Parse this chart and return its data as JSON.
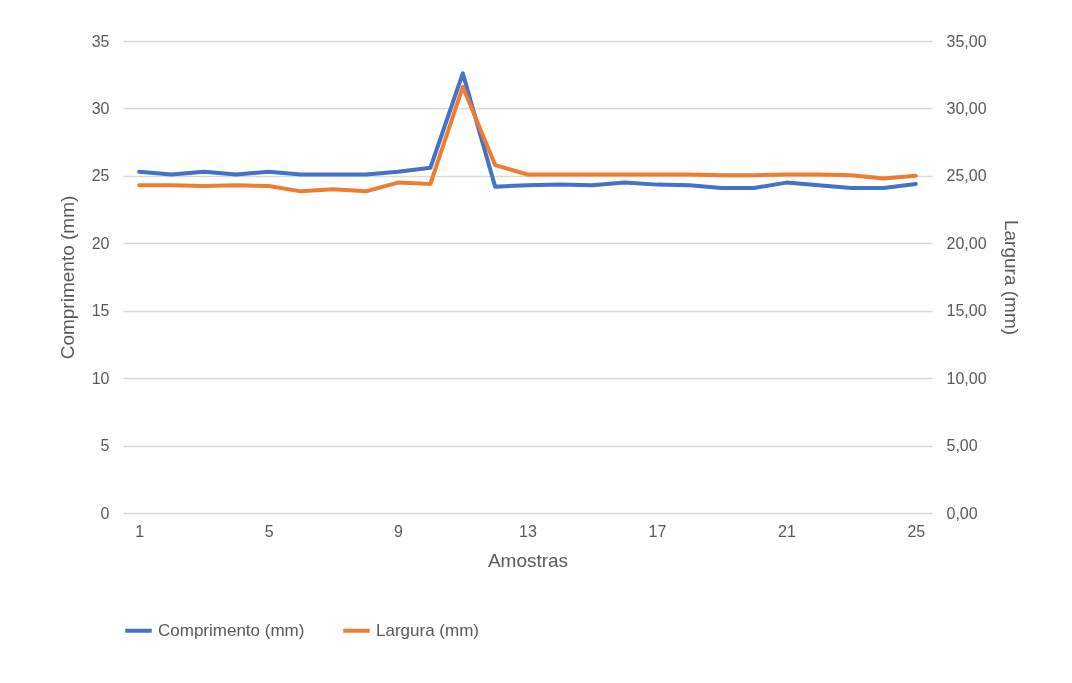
{
  "chart_data": {
    "type": "line",
    "xlabel": "Amostras",
    "ylabel": "Comprimento (mm)",
    "y2label": "Largura (mm)",
    "x": [
      1,
      2,
      3,
      4,
      5,
      6,
      7,
      8,
      9,
      10,
      11,
      12,
      13,
      14,
      15,
      16,
      17,
      18,
      19,
      20,
      21,
      22,
      23,
      24,
      25
    ],
    "xlim": [
      0.5,
      25.5
    ],
    "xticks": [
      1,
      5,
      9,
      13,
      17,
      21,
      25
    ],
    "ylim": [
      0,
      35
    ],
    "yticks": [
      0,
      5,
      10,
      15,
      20,
      25,
      30,
      35
    ],
    "y2lim": [
      0,
      35
    ],
    "y2ticks": [
      {
        "value": 0,
        "label": "0,00"
      },
      {
        "value": 5,
        "label": "5,00"
      },
      {
        "value": 10,
        "label": "10,00"
      },
      {
        "value": 15,
        "label": "15,00"
      },
      {
        "value": 20,
        "label": "20,00"
      },
      {
        "value": 25,
        "label": "25,00"
      },
      {
        "value": 30,
        "label": "30,00"
      },
      {
        "value": 35,
        "label": "35,00"
      }
    ],
    "grid": "y",
    "legend": "bottom",
    "marker": "none",
    "line_style": "solid",
    "series": [
      {
        "name": "Comprimento (mm)",
        "color": "#4472c4",
        "values": [
          25.3,
          25.1,
          25.3,
          25.1,
          25.3,
          25.1,
          25.1,
          25.1,
          25.3,
          25.6,
          32.6,
          24.2,
          24.3,
          24.35,
          24.3,
          24.5,
          24.35,
          24.3,
          24.1,
          24.1,
          24.5,
          24.3,
          24.1,
          24.1,
          24.4
        ]
      },
      {
        "name": "Largura (mm)",
        "color": "#ed7d31",
        "axis": "y2",
        "values": [
          24.3,
          24.3,
          24.25,
          24.3,
          24.25,
          23.85,
          24.0,
          23.85,
          24.5,
          24.4,
          31.6,
          25.8,
          25.1,
          25.1,
          25.1,
          25.1,
          25.1,
          25.1,
          25.05,
          25.05,
          25.1,
          25.1,
          25.05,
          24.8,
          25.0
        ]
      }
    ]
  }
}
